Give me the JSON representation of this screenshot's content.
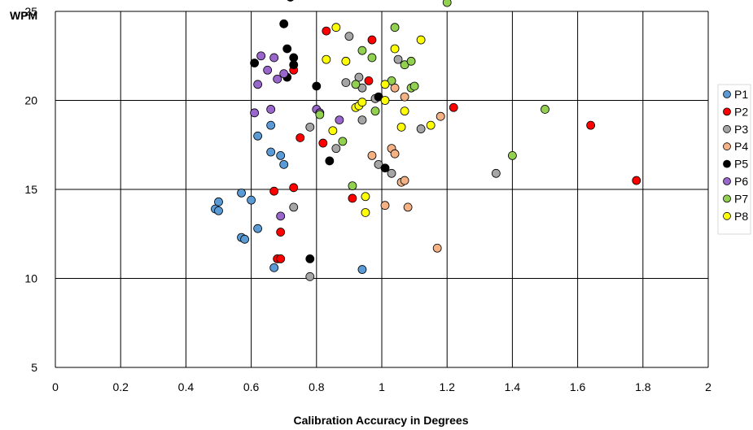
{
  "chart_data": {
    "type": "scatter",
    "title": "",
    "xlabel": "Calibration Accuracy in Degrees",
    "ylabel": "WPM",
    "xlim": [
      0,
      2
    ],
    "ylim": [
      5,
      25
    ],
    "xticks": [
      0,
      0.2,
      0.4,
      0.6,
      0.8,
      1,
      1.2,
      1.4,
      1.6,
      1.8,
      2
    ],
    "xtick_labels": [
      "0",
      "0.2",
      "0.4",
      "0.6",
      "0.8",
      "1",
      "1.2",
      "1.4",
      "1.6",
      "1.8",
      "2"
    ],
    "yticks": [
      5,
      10,
      15,
      20,
      25
    ],
    "ytick_labels": [
      "5",
      "10",
      "15",
      "20",
      "25"
    ],
    "grid": true,
    "legend_position": "right",
    "series": [
      {
        "name": "P1",
        "color": "#5B9BD5",
        "points": [
          [
            0.49,
            13.9
          ],
          [
            0.5,
            13.8
          ],
          [
            0.5,
            14.3
          ],
          [
            0.57,
            14.8
          ],
          [
            0.57,
            12.3
          ],
          [
            0.58,
            12.2
          ],
          [
            0.6,
            14.4
          ],
          [
            0.62,
            12.8
          ],
          [
            0.62,
            18.0
          ],
          [
            0.66,
            18.6
          ],
          [
            0.66,
            17.1
          ],
          [
            0.67,
            10.6
          ],
          [
            0.69,
            16.9
          ],
          [
            0.7,
            16.4
          ],
          [
            0.94,
            10.5
          ]
        ]
      },
      {
        "name": "P2",
        "color": "#FF0000",
        "points": [
          [
            0.67,
            14.9
          ],
          [
            0.68,
            11.1
          ],
          [
            0.69,
            11.1
          ],
          [
            0.69,
            12.6
          ],
          [
            0.73,
            15.1
          ],
          [
            0.73,
            21.7
          ],
          [
            0.75,
            17.9
          ],
          [
            0.82,
            17.6
          ],
          [
            0.83,
            23.9
          ],
          [
            0.91,
            14.5
          ],
          [
            0.96,
            21.1
          ],
          [
            0.97,
            23.4
          ],
          [
            1.22,
            19.6
          ],
          [
            1.64,
            18.6
          ],
          [
            1.78,
            15.5
          ]
        ]
      },
      {
        "name": "P3",
        "color": "#A5A5A5",
        "points": [
          [
            0.73,
            14.0
          ],
          [
            0.78,
            10.1
          ],
          [
            0.78,
            18.5
          ],
          [
            0.86,
            17.3
          ],
          [
            0.89,
            21.0
          ],
          [
            0.9,
            23.6
          ],
          [
            0.93,
            21.3
          ],
          [
            0.94,
            18.9
          ],
          [
            0.94,
            20.7
          ],
          [
            0.98,
            20.1
          ],
          [
            0.99,
            16.4
          ],
          [
            1.03,
            15.9
          ],
          [
            1.05,
            22.3
          ],
          [
            1.12,
            18.4
          ],
          [
            1.35,
            15.9
          ]
        ]
      },
      {
        "name": "P4",
        "color": "#F4B183",
        "points": [
          [
            0.97,
            16.9
          ],
          [
            1.01,
            14.1
          ],
          [
            1.03,
            17.3
          ],
          [
            1.04,
            17.0
          ],
          [
            1.04,
            20.7
          ],
          [
            1.06,
            15.4
          ],
          [
            1.07,
            20.2
          ],
          [
            1.07,
            15.5
          ],
          [
            1.08,
            14.0
          ],
          [
            1.17,
            11.7
          ],
          [
            1.18,
            19.1
          ]
        ]
      },
      {
        "name": "P5",
        "color": "#000000",
        "points": [
          [
            0.61,
            22.1
          ],
          [
            0.7,
            24.3
          ],
          [
            0.71,
            22.9
          ],
          [
            0.71,
            21.3
          ],
          [
            0.72,
            25.8
          ],
          [
            0.73,
            22.4
          ],
          [
            0.73,
            22.0
          ],
          [
            0.78,
            11.1
          ],
          [
            0.8,
            20.8
          ],
          [
            0.84,
            16.6
          ],
          [
            0.99,
            20.2
          ],
          [
            1.01,
            16.2
          ]
        ]
      },
      {
        "name": "P6",
        "color": "#9966CC",
        "points": [
          [
            0.61,
            19.3
          ],
          [
            0.62,
            20.9
          ],
          [
            0.63,
            22.5
          ],
          [
            0.65,
            21.7
          ],
          [
            0.66,
            19.5
          ],
          [
            0.67,
            22.4
          ],
          [
            0.68,
            21.2
          ],
          [
            0.69,
            13.5
          ],
          [
            0.7,
            21.5
          ],
          [
            0.8,
            19.5
          ],
          [
            0.81,
            19.3
          ],
          [
            0.87,
            18.9
          ]
        ]
      },
      {
        "name": "P7",
        "color": "#92D050",
        "points": [
          [
            0.81,
            19.2
          ],
          [
            0.88,
            17.7
          ],
          [
            0.91,
            15.2
          ],
          [
            0.92,
            20.9
          ],
          [
            0.94,
            22.8
          ],
          [
            0.97,
            22.4
          ],
          [
            0.98,
            19.4
          ],
          [
            1.03,
            21.1
          ],
          [
            1.04,
            24.1
          ],
          [
            1.07,
            22.0
          ],
          [
            1.09,
            22.2
          ],
          [
            1.09,
            20.7
          ],
          [
            1.1,
            20.8
          ],
          [
            1.2,
            25.5
          ],
          [
            1.4,
            16.9
          ],
          [
            1.5,
            19.5
          ]
        ]
      },
      {
        "name": "P8",
        "color": "#FFFF00",
        "points": [
          [
            0.83,
            22.3
          ],
          [
            0.85,
            18.3
          ],
          [
            0.86,
            24.1
          ],
          [
            0.89,
            22.2
          ],
          [
            0.92,
            19.6
          ],
          [
            0.93,
            19.7
          ],
          [
            0.94,
            19.9
          ],
          [
            0.95,
            14.6
          ],
          [
            0.95,
            13.7
          ],
          [
            1.01,
            20.9
          ],
          [
            1.01,
            20.0
          ],
          [
            1.04,
            22.9
          ],
          [
            1.06,
            18.5
          ],
          [
            1.07,
            19.4
          ],
          [
            1.12,
            23.4
          ],
          [
            1.15,
            18.6
          ]
        ]
      }
    ]
  }
}
